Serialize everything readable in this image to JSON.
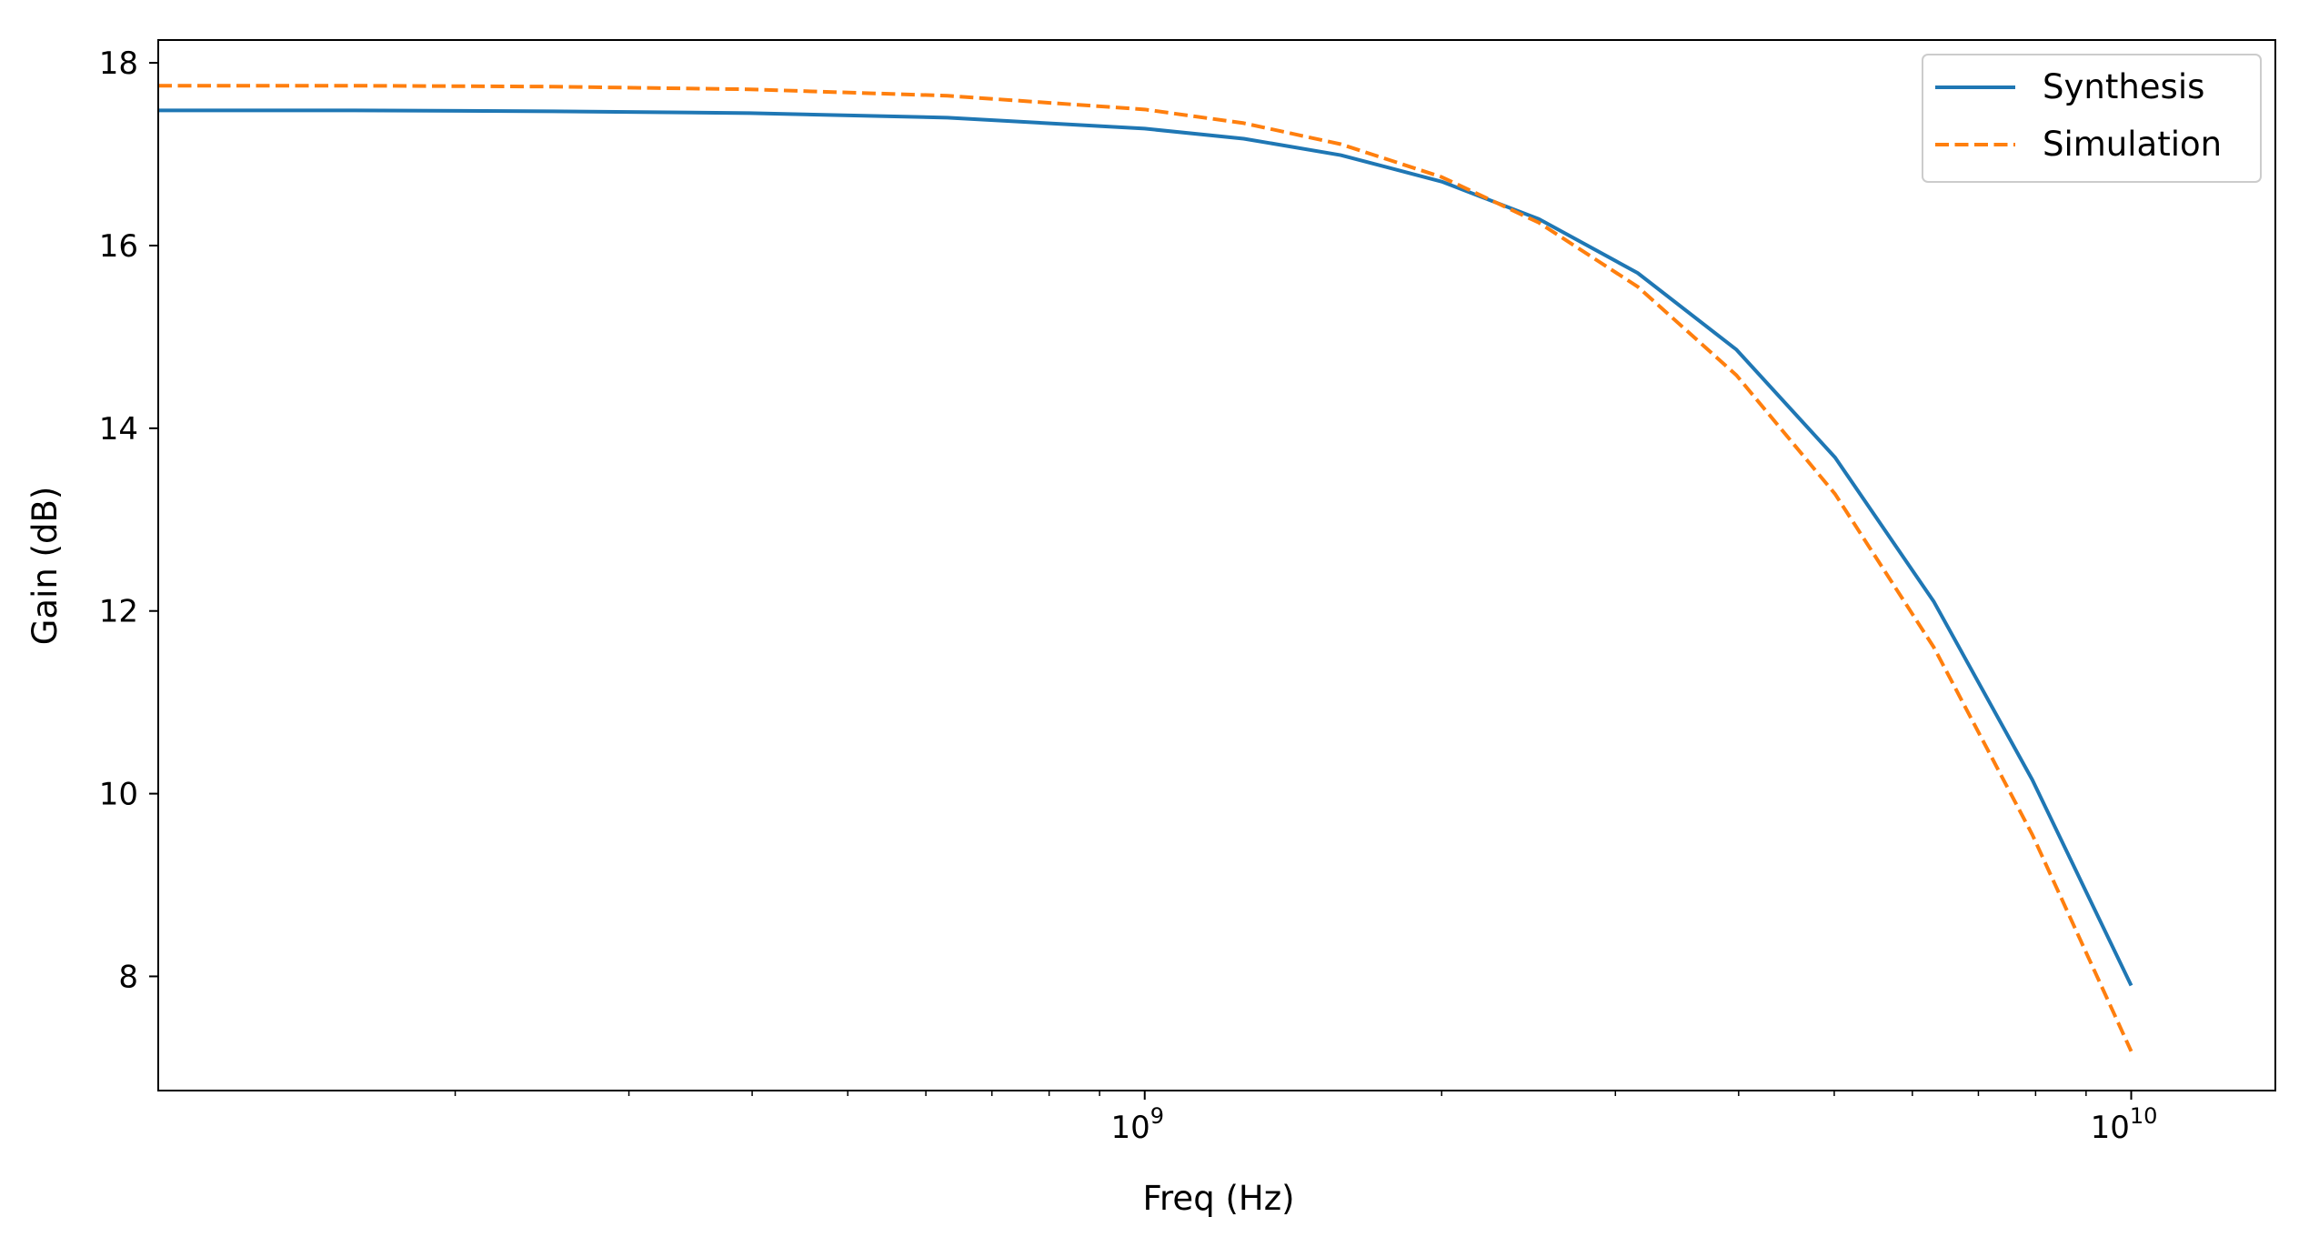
{
  "chart_data": {
    "type": "line",
    "title": "",
    "xlabel": "Freq (Hz)",
    "ylabel": "Gain (dB)",
    "xscale": "log",
    "xlim": [
      100000000,
      14000000000
    ],
    "ylim": [
      6.75,
      18.25
    ],
    "grid": false,
    "legend_position": "top-right",
    "x_major_ticks": [
      {
        "value": 1000000000,
        "base": "10",
        "exp": "9"
      },
      {
        "value": 10000000000,
        "base": "10",
        "exp": "10"
      }
    ],
    "y_ticks": [
      8,
      10,
      12,
      14,
      16,
      18
    ],
    "series": [
      {
        "name": "Synthesis",
        "color": "#1f77b4",
        "dash": "solid",
        "x": [
          100000000,
          158000000,
          251000000,
          398000000,
          631000000,
          1000000000,
          1260000000,
          1580000000,
          2000000000,
          2510000000,
          3160000000,
          3980000000,
          5010000000,
          6310000000,
          7940000000,
          10000000000
        ],
        "y": [
          17.48,
          17.48,
          17.47,
          17.45,
          17.4,
          17.28,
          17.17,
          16.99,
          16.7,
          16.29,
          15.7,
          14.86,
          13.68,
          12.1,
          10.15,
          7.9
        ]
      },
      {
        "name": "Simulation",
        "color": "#ff7f0e",
        "dash": "dashed",
        "x": [
          100000000,
          158000000,
          251000000,
          398000000,
          631000000,
          1000000000,
          1260000000,
          1580000000,
          2000000000,
          2510000000,
          3160000000,
          3980000000,
          5010000000,
          6310000000,
          7940000000,
          10000000000
        ],
        "y": [
          17.75,
          17.75,
          17.74,
          17.71,
          17.64,
          17.49,
          17.34,
          17.11,
          16.75,
          16.25,
          15.55,
          14.58,
          13.28,
          11.6,
          9.55,
          7.18
        ]
      }
    ]
  }
}
